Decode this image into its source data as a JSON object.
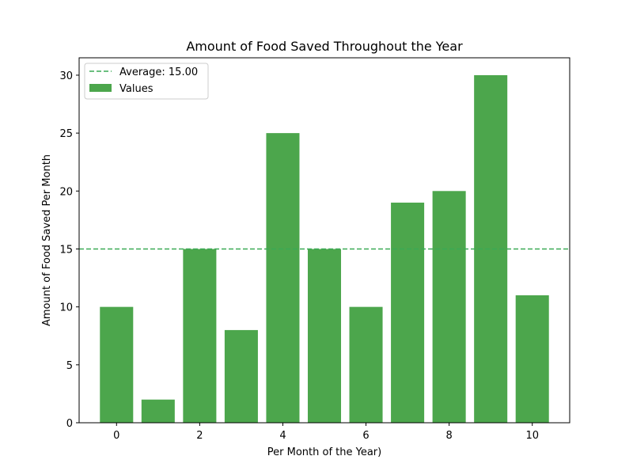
{
  "chart_data": {
    "type": "bar",
    "title": "Amount of Food Saved Throughout the Year",
    "xlabel": "Per Month of the Year)",
    "ylabel": "Amount of Food Saved Per Month",
    "x": [
      0,
      1,
      2,
      3,
      4,
      5,
      6,
      7,
      8,
      9,
      10
    ],
    "values": [
      10,
      2,
      15,
      8,
      25,
      15,
      10,
      19,
      20,
      30,
      11
    ],
    "series_name": "Values",
    "average": 15.0,
    "average_label": "Average: 15.00",
    "xlim": [
      -0.9,
      10.9
    ],
    "ylim": [
      0,
      31.5
    ],
    "xticks": [
      "0",
      "2",
      "4",
      "6",
      "8",
      "10"
    ],
    "yticks": [
      "0",
      "5",
      "10",
      "15",
      "20",
      "25",
      "30"
    ],
    "grid": false,
    "legend_position": "upper-left",
    "colors": {
      "bar": "#4ca64c",
      "average_line": "#3aaa55",
      "axis": "#000000"
    }
  }
}
